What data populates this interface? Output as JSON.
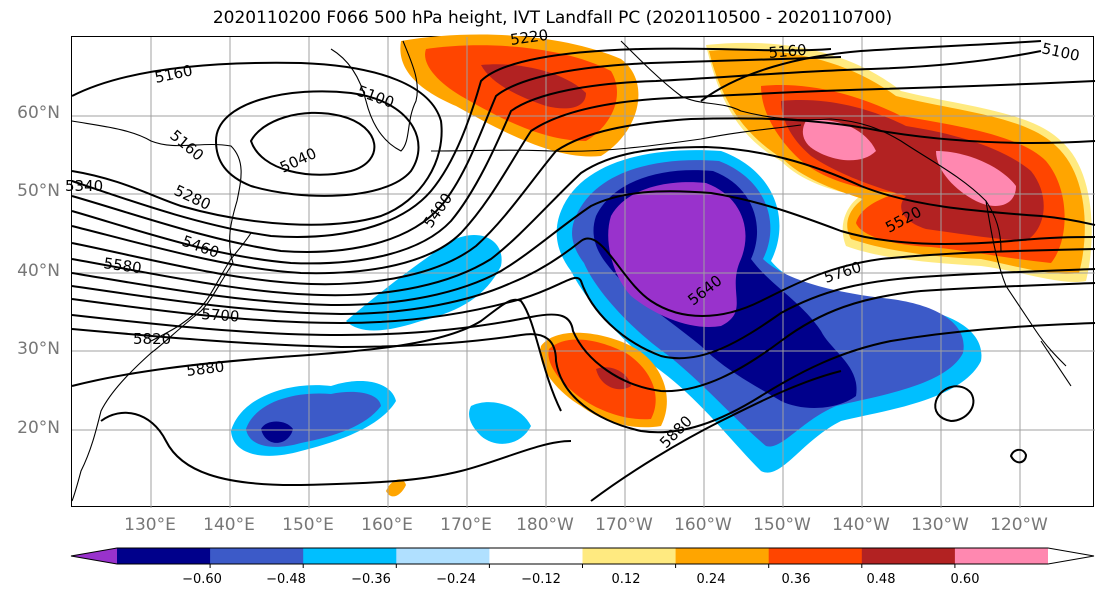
{
  "title": "2020110200 F066 500 hPa height, IVT Landfall PC (2020110500 - 2020110700)",
  "lat_labels": [
    "60°N",
    "50°N",
    "40°N",
    "30°N",
    "20°N"
  ],
  "lon_labels": [
    "130°E",
    "140°E",
    "150°E",
    "160°E",
    "170°E",
    "180°W",
    "170°W",
    "160°W",
    "150°W",
    "140°W",
    "130°W",
    "120°W"
  ],
  "contour_labels": [
    "5160",
    "5100",
    "5040",
    "5160",
    "5280",
    "5400",
    "5460",
    "5580",
    "5700",
    "5820",
    "5880",
    "5880",
    "5640",
    "5760",
    "5520",
    "5160",
    "5100",
    "5220",
    "5340"
  ],
  "colorbar": {
    "ticks": [
      "−0.60",
      "−0.48",
      "−0.36",
      "−0.24",
      "−0.12",
      "0.12",
      "0.24",
      "0.36",
      "0.48",
      "0.60"
    ],
    "colors": [
      "#9932cc",
      "#00008b",
      "#3c5ac8",
      "#00bfff",
      "#b0e0ff",
      "#ffffff",
      "#ffea80",
      "#ffa500",
      "#ff4500",
      "#b22222",
      "#ff88b0",
      "#ffffff"
    ]
  },
  "shading_colors": {
    "c_purple": "#9932cc",
    "c_navy": "#00008b",
    "c_blue": "#3c5ac8",
    "c_sky": "#00bfff",
    "c_yellow": "#ffea80",
    "c_orange": "#ffa500",
    "c_red": "#ff4500",
    "c_darkred": "#b22222",
    "c_pink": "#ff88b0"
  }
}
